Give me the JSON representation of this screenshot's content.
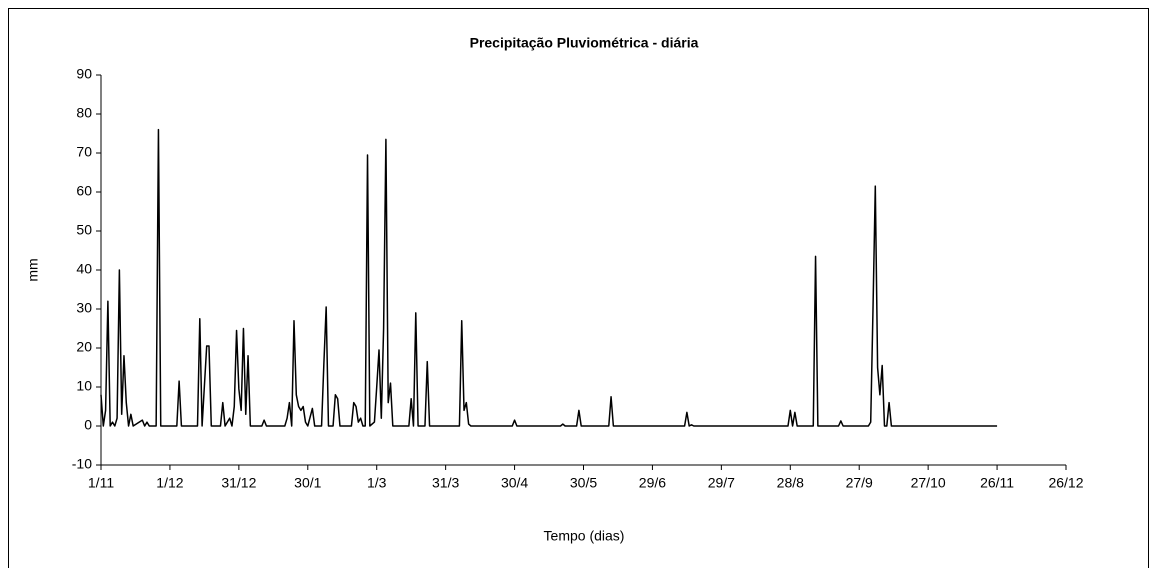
{
  "chart_data": {
    "type": "line",
    "title": "Precipitação Pluviométrica - diária",
    "x_label": "Tempo (dias)",
    "y_label": "mm",
    "xlim": [
      0,
      420
    ],
    "ylim": [
      -10,
      90
    ],
    "xticks": [
      {
        "value": 0,
        "label": "1/11"
      },
      {
        "value": 30,
        "label": "1/12"
      },
      {
        "value": 60,
        "label": "31/12"
      },
      {
        "value": 90,
        "label": "30/1"
      },
      {
        "value": 120,
        "label": "1/3"
      },
      {
        "value": 150,
        "label": "31/3"
      },
      {
        "value": 180,
        "label": "30/4"
      },
      {
        "value": 210,
        "label": "30/5"
      },
      {
        "value": 240,
        "label": "29/6"
      },
      {
        "value": 270,
        "label": "29/7"
      },
      {
        "value": 300,
        "label": "28/8"
      },
      {
        "value": 330,
        "label": "27/9"
      },
      {
        "value": 360,
        "label": "27/10"
      },
      {
        "value": 390,
        "label": "26/11"
      },
      {
        "value": 420,
        "label": "26/12"
      }
    ],
    "yticks": [
      -10,
      0,
      10,
      20,
      30,
      40,
      50,
      60,
      70,
      80,
      90
    ],
    "color": "#000000",
    "x": [
      0,
      1,
      2,
      3,
      4,
      5,
      6,
      7,
      8,
      9,
      10,
      11,
      12,
      13,
      14,
      18,
      19,
      20,
      21,
      24,
      25,
      26,
      33,
      34,
      35,
      42,
      43,
      44,
      46,
      47,
      48,
      52,
      53,
      54,
      55,
      56,
      57,
      58,
      59,
      60,
      61,
      62,
      63,
      64,
      65,
      70,
      71,
      72,
      80,
      81,
      82,
      83,
      84,
      85,
      86,
      87,
      88,
      89,
      90,
      92,
      93,
      96,
      97,
      98,
      99,
      101,
      102,
      103,
      104,
      109,
      110,
      111,
      112,
      113,
      114,
      115,
      116,
      117,
      119,
      120,
      121,
      122,
      123,
      124,
      125,
      126,
      127,
      134,
      135,
      136,
      137,
      138,
      141,
      142,
      143,
      156,
      157,
      158,
      159,
      160,
      161,
      179,
      180,
      181,
      200,
      201,
      202,
      207,
      208,
      209,
      221,
      222,
      223,
      254,
      255,
      256,
      257,
      258,
      299,
      300,
      301,
      302,
      303,
      310,
      311,
      312,
      321,
      322,
      323,
      334,
      335,
      336,
      337,
      338,
      339,
      340,
      341,
      342,
      343,
      344,
      390
    ],
    "values": [
      8,
      0,
      4,
      32,
      0,
      1,
      0,
      2,
      40,
      3,
      18,
      6,
      0,
      3,
      0,
      1.5,
      0,
      1,
      0,
      0,
      76,
      0,
      0,
      11.5,
      0,
      0,
      27.5,
      0,
      20.5,
      20.5,
      0,
      0,
      6,
      0,
      1,
      2,
      0,
      5,
      24.5,
      9.5,
      4,
      25,
      3,
      18,
      0,
      0,
      1.5,
      0,
      0,
      2,
      6,
      0,
      27,
      8,
      5,
      4,
      5,
      1,
      0,
      4.5,
      0,
      0,
      16,
      30.5,
      0,
      0,
      8,
      7,
      0,
      0,
      6,
      5,
      1,
      2,
      0,
      0,
      69.5,
      0,
      1,
      10,
      19.5,
      2,
      25,
      73.5,
      6,
      11,
      0,
      0,
      7,
      0,
      29,
      0,
      0,
      16.5,
      0,
      0,
      27,
      4,
      6,
      0.5,
      0,
      0,
      1.5,
      0,
      0,
      0.5,
      0,
      0,
      4,
      0,
      0,
      7.5,
      0,
      0,
      3.5,
      0,
      0.3,
      0,
      0,
      4,
      0,
      3.5,
      0,
      0,
      43.5,
      0,
      0,
      1.3,
      0,
      0,
      1,
      30,
      61.5,
      15,
      8,
      15.5,
      0,
      0,
      6,
      0,
      0
    ]
  }
}
